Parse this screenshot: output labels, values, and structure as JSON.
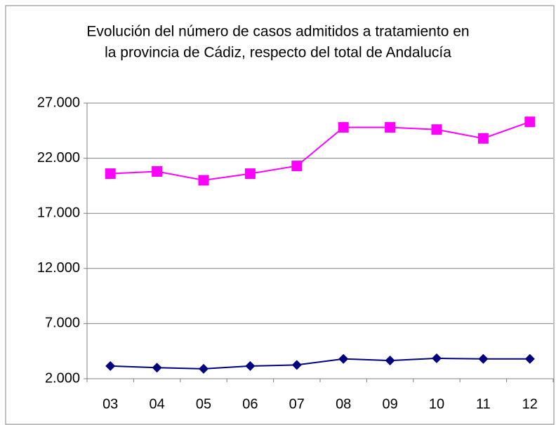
{
  "chart_data": {
    "type": "line",
    "title": [
      "Evolución del número de casos admitidos a tratamiento en",
      "la provincia de Cádiz, respecto del total de Andalucía"
    ],
    "categories": [
      "03",
      "04",
      "05",
      "06",
      "07",
      "08",
      "09",
      "10",
      "11",
      "12"
    ],
    "series": [
      {
        "color": "#ff00ff",
        "marker": "square",
        "values": [
          20600,
          20800,
          20000,
          20600,
          21300,
          24800,
          24800,
          24600,
          23800,
          25300
        ]
      },
      {
        "color": "#000080",
        "marker": "diamond",
        "values": [
          3150,
          3000,
          2900,
          3150,
          3250,
          3800,
          3650,
          3850,
          3800,
          3800
        ]
      }
    ],
    "ylim": [
      2000,
      27000
    ],
    "yticks": [
      {
        "value": 2000,
        "label": "2.000"
      },
      {
        "value": 7000,
        "label": "7.000"
      },
      {
        "value": 12000,
        "label": "12.000"
      },
      {
        "value": 17000,
        "label": "17.000"
      },
      {
        "value": 22000,
        "label": "22.000"
      },
      {
        "value": 27000,
        "label": "27.000"
      }
    ],
    "grid": true
  }
}
